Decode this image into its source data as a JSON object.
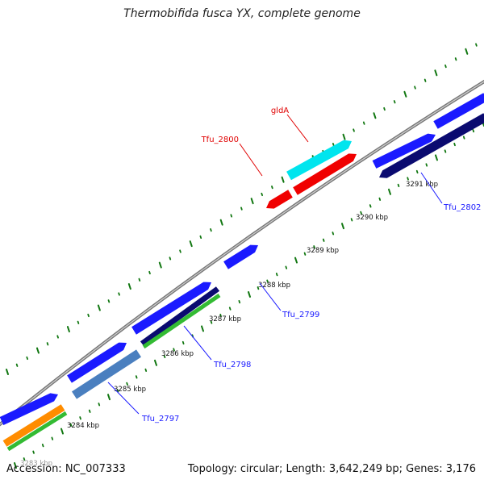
{
  "header": {
    "title": "Thermobifida fusca YX, complete genome"
  },
  "footer": {
    "accession": "Accession: NC_007333",
    "summary": "Topology: circular; Length: 3,642,249 bp; Genes: 3,176"
  },
  "ticks": [
    {
      "label": "3284 kbp"
    },
    {
      "label": "3285 kbp"
    },
    {
      "label": "3286 kbp"
    },
    {
      "label": "3287 kbp"
    },
    {
      "label": "3288 kbp"
    },
    {
      "label": "3289 kbp"
    },
    {
      "label": "3290 kbp"
    },
    {
      "label": "3291 kbp"
    }
  ],
  "clipped_tick": "3283 kbp",
  "genes": [
    {
      "name": "Tfu_2797",
      "color": "#1a1aff"
    },
    {
      "name": "Tfu_2798",
      "color": "#1a1aff"
    },
    {
      "name": "Tfu_2799",
      "color": "#1a1aff"
    },
    {
      "name": "Tfu_2800",
      "color": "#e00000"
    },
    {
      "name": "gldA",
      "color": "#e00000"
    },
    {
      "name": "Tfu_2802",
      "color": "#1a1aff"
    }
  ],
  "colors": {
    "forward_cds": "#1a1aff",
    "reverse_navy": "#0a0a70",
    "green": "#33bb33",
    "orange": "#ff8c00",
    "steel_blue": "#4a7fbf",
    "cyan": "#00e5ee",
    "red": "#f00000",
    "backbone": "#888888",
    "tick_green": "#117711"
  }
}
